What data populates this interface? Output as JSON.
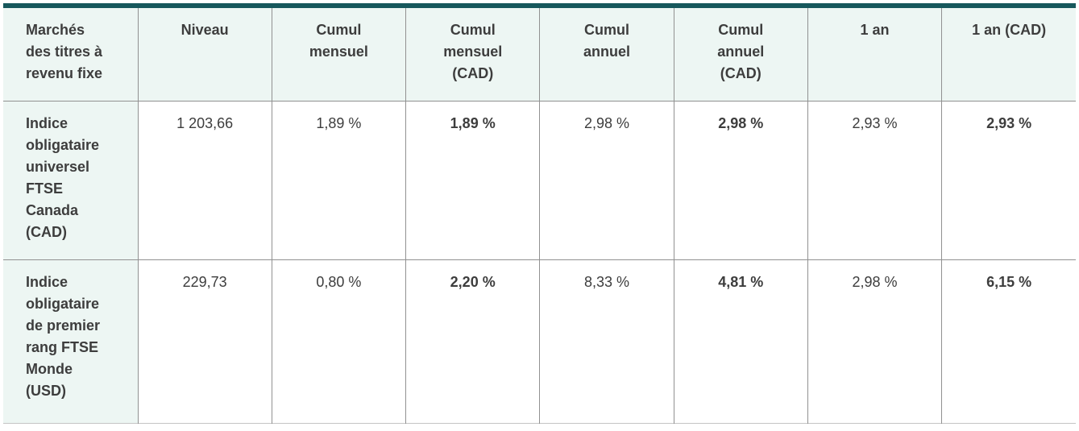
{
  "colors": {
    "accent-bar": "#17585c",
    "header-bg": "#edf6f3",
    "grid-line": "#919191",
    "bottom-line": "#c4c4c4",
    "text": "#3d3d3d"
  },
  "table": {
    "headers": [
      "Marchés\ndes titres à\nrevenu fixe",
      "Niveau",
      "Cumul\nmensuel",
      "Cumul\nmensuel\n(CAD)",
      "Cumul\nannuel",
      "Cumul\nannuel\n(CAD)",
      "1 an",
      "1 an (CAD)"
    ],
    "rows": [
      {
        "label": "Indice\nobligataire\nuniversel\nFTSE\nCanada\n(CAD)",
        "values": [
          "1 203,66",
          "1,89 %",
          "1,89 %",
          "2,98 %",
          "2,98 %",
          "2,93 %",
          "2,93 %"
        ]
      },
      {
        "label": "Indice\nobligataire\nde premier\nrang FTSE\nMonde\n(USD)",
        "values": [
          "229,73",
          "0,80 %",
          "2,20 %",
          "8,33 %",
          "4,81 %",
          "2,98 %",
          "6,15 %"
        ]
      }
    ]
  }
}
